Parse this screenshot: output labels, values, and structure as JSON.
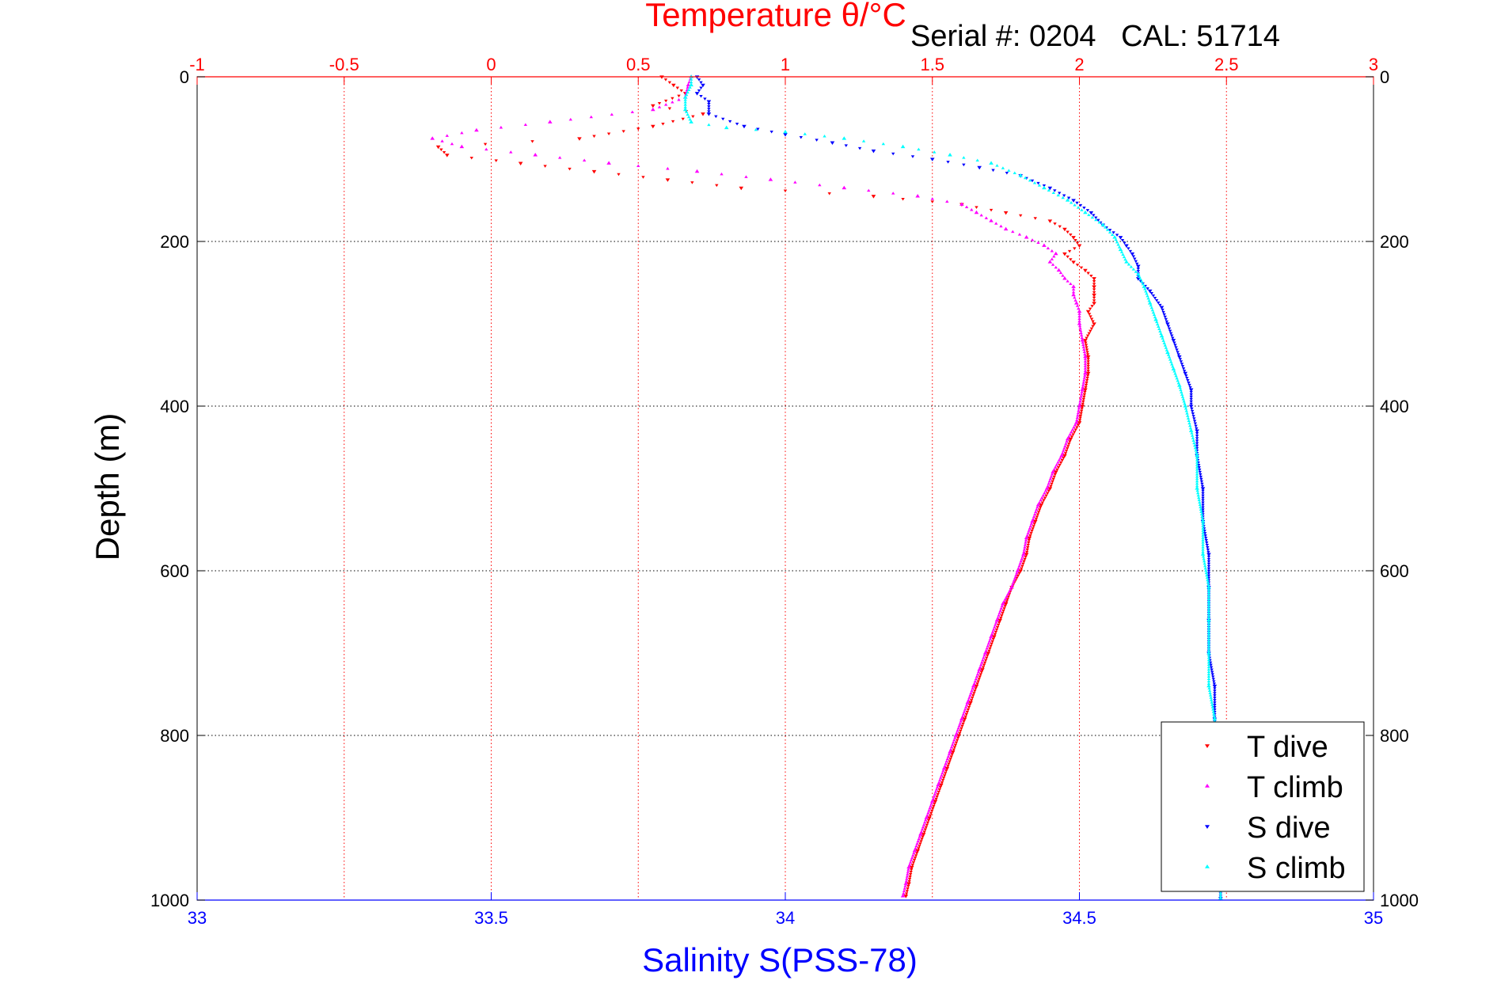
{
  "chart_data": {
    "type": "scatter",
    "title": "Temperature θ/°C",
    "subtitle": "Serial #: 0204   CAL: 51714",
    "xlabel": "Salinity S(PSS-78)",
    "ylabel": "Depth (m)",
    "x_top_label": "Temperature θ/°C",
    "temperature_axis": {
      "range": [
        -1,
        3
      ],
      "ticks": [
        -1,
        -0.5,
        0,
        0.5,
        1,
        1.5,
        2,
        2.5,
        3
      ],
      "tick_labels": [
        "-1",
        "-0.5",
        "0",
        "0.5",
        "1",
        "1.5",
        "2",
        "2.5",
        "3"
      ],
      "color": "#ff0000"
    },
    "salinity_axis": {
      "range": [
        33,
        35
      ],
      "ticks": [
        33,
        33.5,
        34,
        34.5,
        35
      ],
      "tick_labels": [
        "33",
        "33.5",
        "34",
        "34.5",
        "35"
      ],
      "color": "#0000ff"
    },
    "depth_axis": {
      "range": [
        0,
        1000
      ],
      "reversed": true,
      "ticks": [
        0,
        200,
        400,
        600,
        800,
        1000
      ],
      "tick_labels": [
        "0",
        "200",
        "400",
        "600",
        "800",
        "1000"
      ]
    },
    "grid": true,
    "legend_position": "bottom-right",
    "series": [
      {
        "name": "T dive",
        "axis": "temperature",
        "color": "#ff0000",
        "marker": "triangle-down",
        "points": [
          [
            0.58,
            0
          ],
          [
            0.62,
            10
          ],
          [
            0.66,
            20
          ],
          [
            0.55,
            35
          ],
          [
            0.72,
            45
          ],
          [
            0.55,
            60
          ],
          [
            0.3,
            75
          ],
          [
            -0.18,
            85
          ],
          [
            -0.15,
            95
          ],
          [
            0.1,
            105
          ],
          [
            0.35,
            115
          ],
          [
            0.6,
            125
          ],
          [
            0.85,
            135
          ],
          [
            1.3,
            145
          ],
          [
            1.6,
            155
          ],
          [
            1.75,
            165
          ],
          [
            1.9,
            175
          ],
          [
            1.95,
            185
          ],
          [
            1.98,
            195
          ],
          [
            2.0,
            205
          ],
          [
            1.95,
            215
          ],
          [
            1.98,
            225
          ],
          [
            2.02,
            235
          ],
          [
            2.05,
            245
          ],
          [
            2.05,
            255
          ],
          [
            2.05,
            265
          ],
          [
            2.05,
            275
          ],
          [
            2.03,
            285
          ],
          [
            2.05,
            300
          ],
          [
            2.02,
            320
          ],
          [
            2.03,
            340
          ],
          [
            2.03,
            360
          ],
          [
            2.02,
            380
          ],
          [
            2.01,
            400
          ],
          [
            2.0,
            420
          ],
          [
            1.97,
            440
          ],
          [
            1.95,
            460
          ],
          [
            1.92,
            480
          ],
          [
            1.9,
            500
          ],
          [
            1.87,
            520
          ],
          [
            1.85,
            540
          ],
          [
            1.83,
            560
          ],
          [
            1.82,
            580
          ],
          [
            1.8,
            600
          ],
          [
            1.77,
            620
          ],
          [
            1.75,
            640
          ],
          [
            1.73,
            660
          ],
          [
            1.71,
            680
          ],
          [
            1.69,
            700
          ],
          [
            1.67,
            720
          ],
          [
            1.65,
            740
          ],
          [
            1.63,
            760
          ],
          [
            1.61,
            780
          ],
          [
            1.59,
            800
          ],
          [
            1.57,
            820
          ],
          [
            1.55,
            840
          ],
          [
            1.53,
            860
          ],
          [
            1.51,
            880
          ],
          [
            1.49,
            900
          ],
          [
            1.47,
            920
          ],
          [
            1.45,
            940
          ],
          [
            1.43,
            960
          ],
          [
            1.42,
            980
          ],
          [
            1.41,
            995
          ]
        ]
      },
      {
        "name": "T climb",
        "axis": "temperature",
        "color": "#ff00ff",
        "marker": "triangle-up",
        "points": [
          [
            0.68,
            0
          ],
          [
            0.67,
            10
          ],
          [
            0.66,
            25
          ],
          [
            0.55,
            40
          ],
          [
            0.2,
            55
          ],
          [
            -0.05,
            65
          ],
          [
            -0.2,
            75
          ],
          [
            -0.1,
            85
          ],
          [
            0.15,
            95
          ],
          [
            0.4,
            105
          ],
          [
            0.7,
            115
          ],
          [
            0.95,
            125
          ],
          [
            1.2,
            135
          ],
          [
            1.45,
            145
          ],
          [
            1.6,
            155
          ],
          [
            1.65,
            165
          ],
          [
            1.7,
            175
          ],
          [
            1.75,
            185
          ],
          [
            1.82,
            195
          ],
          [
            1.88,
            205
          ],
          [
            1.92,
            215
          ],
          [
            1.9,
            225
          ],
          [
            1.93,
            235
          ],
          [
            1.95,
            245
          ],
          [
            1.98,
            255
          ],
          [
            1.98,
            265
          ],
          [
            1.99,
            275
          ],
          [
            2.0,
            285
          ],
          [
            2.0,
            300
          ],
          [
            2.01,
            320
          ],
          [
            2.02,
            340
          ],
          [
            2.02,
            360
          ],
          [
            2.01,
            380
          ],
          [
            2.0,
            400
          ],
          [
            1.99,
            420
          ],
          [
            1.96,
            440
          ],
          [
            1.94,
            460
          ],
          [
            1.91,
            480
          ],
          [
            1.89,
            500
          ],
          [
            1.86,
            520
          ],
          [
            1.84,
            540
          ],
          [
            1.82,
            560
          ],
          [
            1.81,
            580
          ],
          [
            1.79,
            600
          ],
          [
            1.77,
            620
          ],
          [
            1.74,
            640
          ],
          [
            1.72,
            660
          ],
          [
            1.7,
            680
          ],
          [
            1.68,
            700
          ],
          [
            1.66,
            720
          ],
          [
            1.64,
            740
          ],
          [
            1.62,
            760
          ],
          [
            1.6,
            780
          ],
          [
            1.58,
            800
          ],
          [
            1.56,
            820
          ],
          [
            1.54,
            840
          ],
          [
            1.52,
            860
          ],
          [
            1.5,
            880
          ],
          [
            1.48,
            900
          ],
          [
            1.46,
            920
          ],
          [
            1.44,
            940
          ],
          [
            1.42,
            960
          ],
          [
            1.41,
            980
          ],
          [
            1.4,
            995
          ]
        ]
      },
      {
        "name": "S dive",
        "axis": "salinity",
        "color": "#0000ff",
        "marker": "triangle-down",
        "points": [
          [
            33.85,
            0
          ],
          [
            33.86,
            10
          ],
          [
            33.85,
            20
          ],
          [
            33.87,
            30
          ],
          [
            33.87,
            45
          ],
          [
            33.93,
            60
          ],
          [
            34.0,
            70
          ],
          [
            34.08,
            80
          ],
          [
            34.15,
            90
          ],
          [
            34.25,
            100
          ],
          [
            34.33,
            110
          ],
          [
            34.4,
            120
          ],
          [
            34.45,
            135
          ],
          [
            34.49,
            150
          ],
          [
            34.52,
            165
          ],
          [
            34.54,
            180
          ],
          [
            34.57,
            195
          ],
          [
            34.58,
            205
          ],
          [
            34.59,
            215
          ],
          [
            34.6,
            230
          ],
          [
            34.6,
            245
          ],
          [
            34.62,
            260
          ],
          [
            34.64,
            280
          ],
          [
            34.65,
            300
          ],
          [
            34.66,
            320
          ],
          [
            34.67,
            340
          ],
          [
            34.68,
            360
          ],
          [
            34.69,
            380
          ],
          [
            34.69,
            400
          ],
          [
            34.7,
            430
          ],
          [
            34.7,
            460
          ],
          [
            34.71,
            500
          ],
          [
            34.71,
            540
          ],
          [
            34.72,
            580
          ],
          [
            34.72,
            620
          ],
          [
            34.72,
            660
          ],
          [
            34.72,
            700
          ],
          [
            34.73,
            740
          ],
          [
            34.73,
            780
          ],
          [
            34.73,
            820
          ],
          [
            34.73,
            860
          ],
          [
            34.74,
            900
          ],
          [
            34.74,
            940
          ],
          [
            34.74,
            980
          ],
          [
            34.74,
            998
          ]
        ]
      },
      {
        "name": "S climb",
        "axis": "salinity",
        "color": "#00ffff",
        "marker": "triangle-up",
        "points": [
          [
            33.84,
            0
          ],
          [
            33.84,
            10
          ],
          [
            33.83,
            25
          ],
          [
            33.83,
            40
          ],
          [
            33.84,
            55
          ],
          [
            33.9,
            62
          ],
          [
            34.0,
            67
          ],
          [
            34.1,
            75
          ],
          [
            34.2,
            85
          ],
          [
            34.28,
            95
          ],
          [
            34.35,
            105
          ],
          [
            34.4,
            120
          ],
          [
            34.44,
            135
          ],
          [
            34.48,
            150
          ],
          [
            34.51,
            165
          ],
          [
            34.54,
            180
          ],
          [
            34.56,
            195
          ],
          [
            34.57,
            210
          ],
          [
            34.58,
            225
          ],
          [
            34.6,
            240
          ],
          [
            34.61,
            255
          ],
          [
            34.62,
            275
          ],
          [
            34.63,
            295
          ],
          [
            34.64,
            315
          ],
          [
            34.65,
            335
          ],
          [
            34.66,
            355
          ],
          [
            34.67,
            375
          ],
          [
            34.68,
            400
          ],
          [
            34.69,
            430
          ],
          [
            34.7,
            460
          ],
          [
            34.7,
            500
          ],
          [
            34.71,
            540
          ],
          [
            34.71,
            580
          ],
          [
            34.72,
            620
          ],
          [
            34.72,
            660
          ],
          [
            34.72,
            700
          ],
          [
            34.72,
            740
          ],
          [
            34.73,
            780
          ],
          [
            34.73,
            820
          ],
          [
            34.73,
            860
          ],
          [
            34.73,
            900
          ],
          [
            34.73,
            940
          ],
          [
            34.74,
            980
          ],
          [
            34.74,
            998
          ]
        ]
      }
    ]
  }
}
